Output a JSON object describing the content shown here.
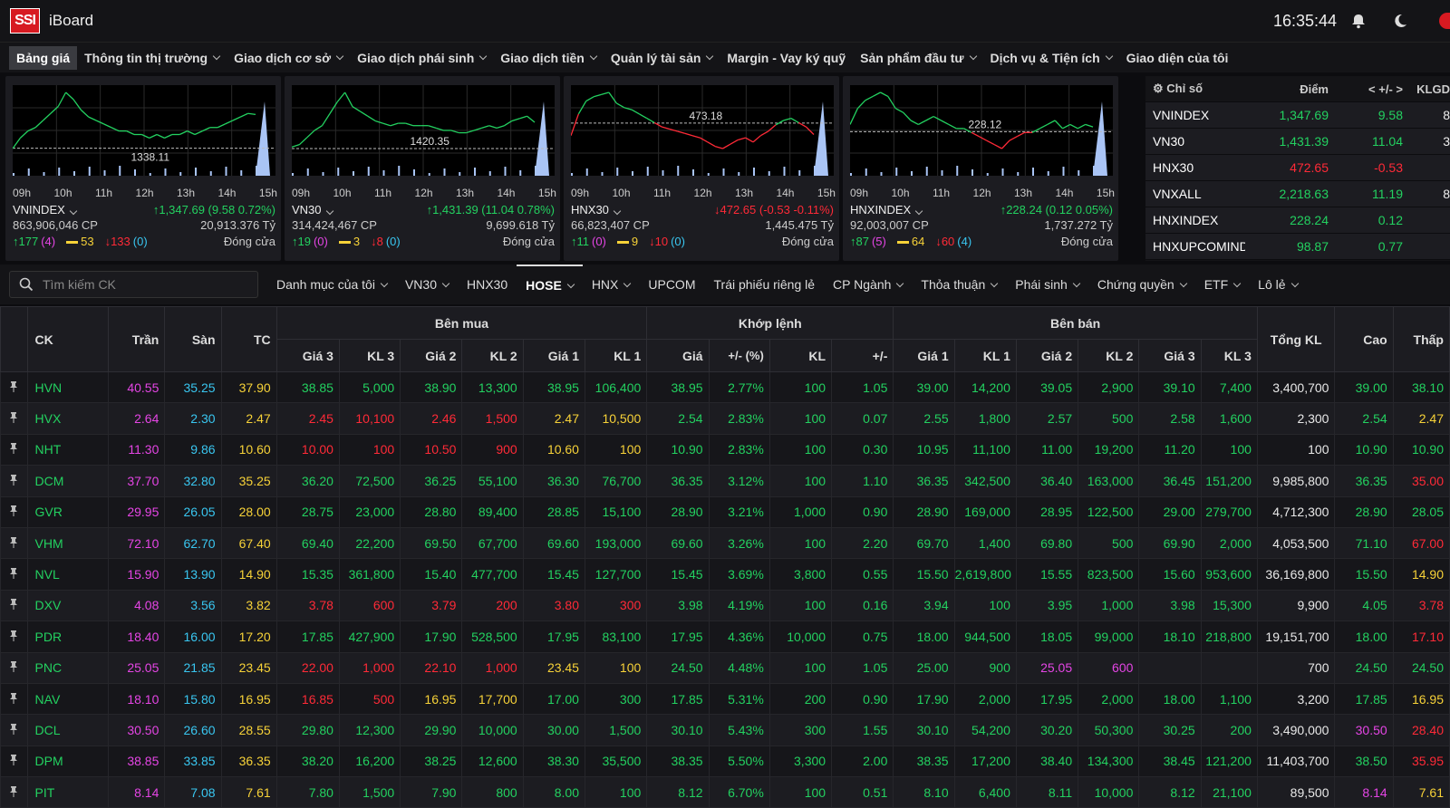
{
  "app": {
    "logo": "SSI",
    "name": "iBoard",
    "clock": "16:35:44",
    "icons": [
      "bell-icon",
      "moon-icon"
    ]
  },
  "menu": [
    {
      "label": "Bảng giá",
      "dropdown": false,
      "active": true
    },
    {
      "label": "Thông tin thị trường",
      "dropdown": true
    },
    {
      "label": "Giao dịch cơ sở",
      "dropdown": true
    },
    {
      "label": "Giao dịch phái sinh",
      "dropdown": true
    },
    {
      "label": "Giao dịch tiền",
      "dropdown": true
    },
    {
      "label": "Quản lý tài sản",
      "dropdown": true
    },
    {
      "label": "Margin - Vay ký quỹ",
      "dropdown": false
    },
    {
      "label": "Sản phẩm đầu tư",
      "dropdown": true
    },
    {
      "label": "Dịch vụ & Tiện ích",
      "dropdown": true
    },
    {
      "label": "Giao diện của tôi",
      "dropdown": false
    }
  ],
  "time_labels": [
    "09h",
    "10h",
    "11h",
    "12h",
    "13h",
    "14h",
    "15h"
  ],
  "panels": [
    {
      "name": "VNINDEX",
      "change": "↑1,347.69 (9.58 0.72%)",
      "up": true,
      "volume": "863,906,046 CP",
      "value": "20,913.376 Tỷ",
      "adv": "↑177",
      "adv_ceil": "(4)",
      "unch": "53",
      "dec": "↓133",
      "dec_floor": "(0)",
      "status": "Đóng cửa",
      "ref_label": "1338.11",
      "series": [
        1338,
        1341,
        1343,
        1344,
        1346,
        1348,
        1350,
        1354,
        1352,
        1349,
        1347,
        1346,
        1345,
        1344,
        1343,
        1343,
        1342,
        1342,
        1341,
        1342,
        1341,
        1342,
        1342,
        1343,
        1342,
        1343,
        1344,
        1344,
        1345,
        1346,
        1347,
        1348,
        1347.7
      ],
      "colors": "green"
    },
    {
      "name": "VN30",
      "change": "↑1,431.39 (11.04 0.78%)",
      "up": true,
      "volume": "314,424,467 CP",
      "value": "9,699.618 Tỷ",
      "adv": "↑19",
      "adv_ceil": "(0)",
      "unch": "3",
      "dec": "↓8",
      "dec_floor": "(0)",
      "status": "Đóng cửa",
      "ref_label": "1420.35",
      "series": [
        1421,
        1422,
        1425,
        1428,
        1430,
        1435,
        1440,
        1444,
        1438,
        1436,
        1434,
        1432,
        1431,
        1430,
        1431,
        1431,
        1430,
        1430,
        1430,
        1429,
        1428,
        1428,
        1427,
        1427,
        1428,
        1429,
        1430,
        1429,
        1430,
        1432,
        1433,
        1434,
        1431.4
      ],
      "colors": "green"
    },
    {
      "name": "HNX30",
      "change": "↓472.65 (-0.53 -0.11%)",
      "up": false,
      "volume": "66,823,407 CP",
      "value": "1,445.475 Tỷ",
      "adv": "↑11",
      "adv_ceil": "(0)",
      "unch": "9",
      "dec": "↓10",
      "dec_floor": "(0)",
      "status": "Đóng cửa",
      "ref_label": "473.18",
      "series": [
        472.6,
        473.6,
        474.2,
        474.4,
        474.5,
        474.6,
        474.1,
        473.9,
        473.8,
        473.6,
        473.4,
        473.2,
        473.0,
        472.9,
        472.8,
        472.7,
        472.6,
        472.5,
        472.3,
        472.1,
        472.0,
        472.2,
        472.4,
        472.5,
        472.3,
        472.6,
        472.8,
        473.1,
        473.3,
        473.4,
        473.2,
        473.0,
        472.65
      ],
      "colors": "mixed"
    },
    {
      "name": "HNXINDEX",
      "change": "↑228.24 (0.12 0.05%)",
      "up": true,
      "volume": "92,003,007 CP",
      "value": "1,737.272 Tỷ",
      "adv": "↑87",
      "adv_ceil": "(5)",
      "unch": "64",
      "dec": "↓60",
      "dec_floor": "(4)",
      "status": "Đóng cửa",
      "ref_label": "228.12",
      "series": [
        228.3,
        228.7,
        228.9,
        229.0,
        229.1,
        229.0,
        228.7,
        228.6,
        228.4,
        228.3,
        228.4,
        228.5,
        228.4,
        228.3,
        228.2,
        228.2,
        228.1,
        228.0,
        227.9,
        227.8,
        227.7,
        227.9,
        228.0,
        228.1,
        228.1,
        228.2,
        228.3,
        228.4,
        228.2,
        228.3,
        228.2,
        228.3,
        228.24
      ],
      "colors": "mixed"
    }
  ],
  "index_table": {
    "headers": [
      "Chỉ số",
      "Điểm",
      "< +/- >",
      "KLGD"
    ],
    "rows": [
      {
        "name": "VNINDEX",
        "point": "1,347.69",
        "change": "9.58",
        "vol": "8",
        "color": "green"
      },
      {
        "name": "VN30",
        "point": "1,431.39",
        "change": "11.04",
        "vol": "3",
        "color": "green"
      },
      {
        "name": "HNX30",
        "point": "472.65",
        "change": "-0.53",
        "vol": "",
        "color": "red"
      },
      {
        "name": "VNXALL",
        "point": "2,218.63",
        "change": "11.19",
        "vol": "8",
        "color": "green"
      },
      {
        "name": "HNXINDEX",
        "point": "228.24",
        "change": "0.12",
        "vol": "",
        "color": "green"
      },
      {
        "name": "HNXUPCOMINDEX",
        "point": "98.87",
        "change": "0.77",
        "vol": "",
        "color": "green"
      }
    ]
  },
  "search": {
    "placeholder": "Tìm kiếm CK"
  },
  "filters": [
    {
      "label": "Danh mục của tôi",
      "dropdown": true
    },
    {
      "label": "VN30",
      "dropdown": true
    },
    {
      "label": "HNX30",
      "dropdown": false
    },
    {
      "label": "HOSE",
      "dropdown": true,
      "active": true
    },
    {
      "label": "HNX",
      "dropdown": true
    },
    {
      "label": "UPCOM",
      "dropdown": false
    },
    {
      "label": "Trái phiếu riêng lẻ",
      "dropdown": false
    },
    {
      "label": "CP Ngành",
      "dropdown": true
    },
    {
      "label": "Thỏa thuận",
      "dropdown": true
    },
    {
      "label": "Phái sinh",
      "dropdown": true
    },
    {
      "label": "Chứng quyền",
      "dropdown": true
    },
    {
      "label": "ETF",
      "dropdown": true
    },
    {
      "label": "Lô lẻ",
      "dropdown": true
    }
  ],
  "board": {
    "groups": {
      "ck": "CK",
      "tran": "Trần",
      "san": "Sàn",
      "tc": "TC",
      "buy": "Bên mua",
      "match": "Khớp lệnh",
      "sell": "Bên bán",
      "total": "Tổng KL",
      "high": "Cao",
      "low": "Thấp"
    },
    "sub": [
      "Giá 3",
      "KL 3",
      "Giá 2",
      "KL 2",
      "Giá 1",
      "KL 1",
      "Giá",
      "+/- (%)",
      "KL",
      "+/-",
      "Giá 1",
      "KL 1",
      "Giá 2",
      "KL 2",
      "Giá 3",
      "KL 3"
    ],
    "rows": [
      {
        "v": [
          "HVN",
          "40.55",
          "35.25",
          "37.90",
          "38.85",
          "5,000",
          "38.90",
          "13,300",
          "38.95",
          "106,400",
          "38.95",
          "2.77%",
          "100",
          "1.05",
          "39.00",
          "14,200",
          "39.05",
          "2,900",
          "39.10",
          "7,400",
          "3,400,700",
          "39.00",
          "38.10"
        ],
        "c": [
          "g",
          "pu",
          "cy",
          "ye",
          "g",
          "g",
          "g",
          "g",
          "g",
          "g",
          "g",
          "g",
          "g",
          "g",
          "g",
          "g",
          "g",
          "g",
          "g",
          "g",
          "wh",
          "g",
          "g"
        ]
      },
      {
        "v": [
          "HVX",
          "2.64",
          "2.30",
          "2.47",
          "2.45",
          "10,100",
          "2.46",
          "1,500",
          "2.47",
          "10,500",
          "2.54",
          "2.83%",
          "100",
          "0.07",
          "2.55",
          "1,800",
          "2.57",
          "500",
          "2.58",
          "1,600",
          "2,300",
          "2.54",
          "2.47"
        ],
        "c": [
          "g",
          "pu",
          "cy",
          "ye",
          "r",
          "r",
          "r",
          "r",
          "ye",
          "ye",
          "g",
          "g",
          "g",
          "g",
          "g",
          "g",
          "g",
          "g",
          "g",
          "g",
          "wh",
          "g",
          "ye"
        ]
      },
      {
        "v": [
          "NHT",
          "11.30",
          "9.86",
          "10.60",
          "10.00",
          "100",
          "10.50",
          "900",
          "10.60",
          "100",
          "10.90",
          "2.83%",
          "100",
          "0.30",
          "10.95",
          "11,100",
          "11.00",
          "19,200",
          "11.20",
          "100",
          "100",
          "10.90",
          "10.90"
        ],
        "c": [
          "g",
          "pu",
          "cy",
          "ye",
          "r",
          "r",
          "r",
          "r",
          "ye",
          "ye",
          "g",
          "g",
          "g",
          "g",
          "g",
          "g",
          "g",
          "g",
          "g",
          "g",
          "wh",
          "g",
          "g"
        ]
      },
      {
        "v": [
          "DCM",
          "37.70",
          "32.80",
          "35.25",
          "36.20",
          "72,500",
          "36.25",
          "55,100",
          "36.30",
          "76,700",
          "36.35",
          "3.12%",
          "100",
          "1.10",
          "36.35",
          "342,500",
          "36.40",
          "163,000",
          "36.45",
          "151,200",
          "9,985,800",
          "36.35",
          "35.00"
        ],
        "c": [
          "g",
          "pu",
          "cy",
          "ye",
          "g",
          "g",
          "g",
          "g",
          "g",
          "g",
          "g",
          "g",
          "g",
          "g",
          "g",
          "g",
          "g",
          "g",
          "g",
          "g",
          "wh",
          "g",
          "r"
        ]
      },
      {
        "v": [
          "GVR",
          "29.95",
          "26.05",
          "28.00",
          "28.75",
          "23,000",
          "28.80",
          "89,400",
          "28.85",
          "15,100",
          "28.90",
          "3.21%",
          "1,000",
          "0.90",
          "28.90",
          "169,000",
          "28.95",
          "122,500",
          "29.00",
          "279,700",
          "4,712,300",
          "28.90",
          "28.05"
        ],
        "c": [
          "g",
          "pu",
          "cy",
          "ye",
          "g",
          "g",
          "g",
          "g",
          "g",
          "g",
          "g",
          "g",
          "g",
          "g",
          "g",
          "g",
          "g",
          "g",
          "g",
          "g",
          "wh",
          "g",
          "g"
        ]
      },
      {
        "v": [
          "VHM",
          "72.10",
          "62.70",
          "67.40",
          "69.40",
          "22,200",
          "69.50",
          "67,700",
          "69.60",
          "193,000",
          "69.60",
          "3.26%",
          "100",
          "2.20",
          "69.70",
          "1,400",
          "69.80",
          "500",
          "69.90",
          "2,000",
          "4,053,500",
          "71.10",
          "67.00"
        ],
        "c": [
          "g",
          "pu",
          "cy",
          "ye",
          "g",
          "g",
          "g",
          "g",
          "g",
          "g",
          "g",
          "g",
          "g",
          "g",
          "g",
          "g",
          "g",
          "g",
          "g",
          "g",
          "wh",
          "g",
          "r"
        ]
      },
      {
        "v": [
          "NVL",
          "15.90",
          "13.90",
          "14.90",
          "15.35",
          "361,800",
          "15.40",
          "477,700",
          "15.45",
          "127,700",
          "15.45",
          "3.69%",
          "3,800",
          "0.55",
          "15.50",
          "2,619,800",
          "15.55",
          "823,500",
          "15.60",
          "953,600",
          "36,169,800",
          "15.50",
          "14.90"
        ],
        "c": [
          "g",
          "pu",
          "cy",
          "ye",
          "g",
          "g",
          "g",
          "g",
          "g",
          "g",
          "g",
          "g",
          "g",
          "g",
          "g",
          "g",
          "g",
          "g",
          "g",
          "g",
          "wh",
          "g",
          "ye"
        ]
      },
      {
        "v": [
          "DXV",
          "4.08",
          "3.56",
          "3.82",
          "3.78",
          "600",
          "3.79",
          "200",
          "3.80",
          "300",
          "3.98",
          "4.19%",
          "100",
          "0.16",
          "3.94",
          "100",
          "3.95",
          "1,000",
          "3.98",
          "15,300",
          "9,900",
          "4.05",
          "3.78"
        ],
        "c": [
          "g",
          "pu",
          "cy",
          "ye",
          "r",
          "r",
          "r",
          "r",
          "r",
          "r",
          "g",
          "g",
          "g",
          "g",
          "g",
          "g",
          "g",
          "g",
          "g",
          "g",
          "wh",
          "g",
          "r"
        ]
      },
      {
        "v": [
          "PDR",
          "18.40",
          "16.00",
          "17.20",
          "17.85",
          "427,900",
          "17.90",
          "528,500",
          "17.95",
          "83,100",
          "17.95",
          "4.36%",
          "10,000",
          "0.75",
          "18.00",
          "944,500",
          "18.05",
          "99,000",
          "18.10",
          "218,800",
          "19,151,700",
          "18.00",
          "17.10"
        ],
        "c": [
          "g",
          "pu",
          "cy",
          "ye",
          "g",
          "g",
          "g",
          "g",
          "g",
          "g",
          "g",
          "g",
          "g",
          "g",
          "g",
          "g",
          "g",
          "g",
          "g",
          "g",
          "wh",
          "g",
          "r"
        ]
      },
      {
        "v": [
          "PNC",
          "25.05",
          "21.85",
          "23.45",
          "22.00",
          "1,000",
          "22.10",
          "1,000",
          "23.45",
          "100",
          "24.50",
          "4.48%",
          "100",
          "1.05",
          "25.00",
          "900",
          "25.05",
          "600",
          "",
          "",
          "700",
          "24.50",
          "24.50"
        ],
        "c": [
          "g",
          "pu",
          "cy",
          "ye",
          "r",
          "r",
          "r",
          "r",
          "ye",
          "ye",
          "g",
          "g",
          "g",
          "g",
          "g",
          "g",
          "pu",
          "pu",
          "g",
          "g",
          "wh",
          "g",
          "g"
        ]
      },
      {
        "v": [
          "NAV",
          "18.10",
          "15.80",
          "16.95",
          "16.85",
          "500",
          "16.95",
          "17,700",
          "17.00",
          "300",
          "17.85",
          "5.31%",
          "200",
          "0.90",
          "17.90",
          "2,000",
          "17.95",
          "2,000",
          "18.00",
          "1,100",
          "3,200",
          "17.85",
          "16.95"
        ],
        "c": [
          "g",
          "pu",
          "cy",
          "ye",
          "r",
          "r",
          "ye",
          "ye",
          "g",
          "g",
          "g",
          "g",
          "g",
          "g",
          "g",
          "g",
          "g",
          "g",
          "g",
          "g",
          "wh",
          "g",
          "ye"
        ]
      },
      {
        "v": [
          "DCL",
          "30.50",
          "26.60",
          "28.55",
          "29.80",
          "12,300",
          "29.90",
          "10,000",
          "30.00",
          "1,500",
          "30.10",
          "5.43%",
          "300",
          "1.55",
          "30.10",
          "54,200",
          "30.20",
          "50,300",
          "30.25",
          "200",
          "3,490,000",
          "30.50",
          "28.40"
        ],
        "c": [
          "g",
          "pu",
          "cy",
          "ye",
          "g",
          "g",
          "g",
          "g",
          "g",
          "g",
          "g",
          "g",
          "g",
          "g",
          "g",
          "g",
          "g",
          "g",
          "g",
          "g",
          "wh",
          "pu",
          "r"
        ]
      },
      {
        "v": [
          "DPM",
          "38.85",
          "33.85",
          "36.35",
          "38.20",
          "16,200",
          "38.25",
          "12,600",
          "38.30",
          "35,500",
          "38.35",
          "5.50%",
          "3,300",
          "2.00",
          "38.35",
          "17,200",
          "38.40",
          "134,300",
          "38.45",
          "121,200",
          "11,403,700",
          "38.50",
          "35.95"
        ],
        "c": [
          "g",
          "pu",
          "cy",
          "ye",
          "g",
          "g",
          "g",
          "g",
          "g",
          "g",
          "g",
          "g",
          "g",
          "g",
          "g",
          "g",
          "g",
          "g",
          "g",
          "g",
          "wh",
          "g",
          "r"
        ]
      },
      {
        "v": [
          "PIT",
          "8.14",
          "7.08",
          "7.61",
          "7.80",
          "1,500",
          "7.90",
          "800",
          "8.00",
          "100",
          "8.12",
          "6.70%",
          "100",
          "0.51",
          "8.10",
          "6,400",
          "8.11",
          "10,000",
          "8.12",
          "21,100",
          "89,500",
          "8.14",
          "7.61"
        ],
        "c": [
          "g",
          "pu",
          "cy",
          "ye",
          "g",
          "g",
          "g",
          "g",
          "g",
          "g",
          "g",
          "g",
          "g",
          "g",
          "g",
          "g",
          "g",
          "g",
          "g",
          "g",
          "wh",
          "pu",
          "ye"
        ]
      }
    ]
  },
  "colors": {
    "up": "#23d160",
    "down": "#ff2a37",
    "ref": "#f7d238",
    "ceiling": "#e545e5",
    "floor": "#39c6f0"
  }
}
